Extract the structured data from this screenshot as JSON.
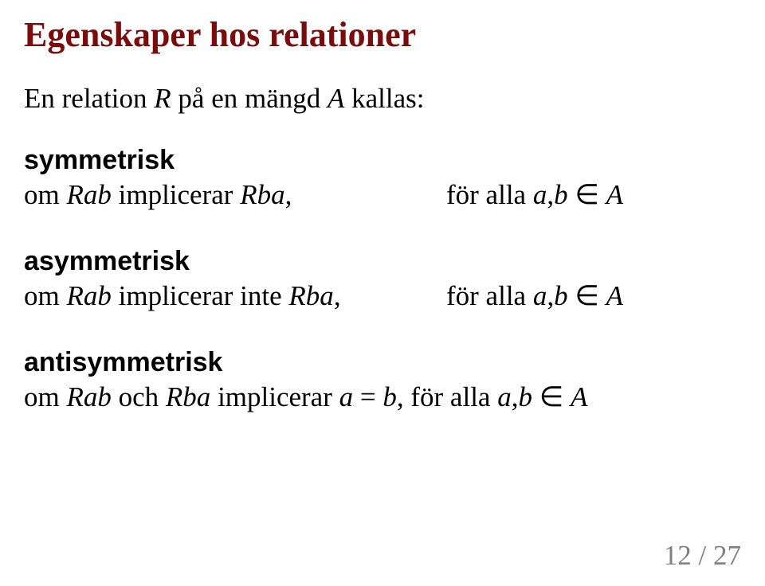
{
  "title": {
    "text": "Egenskaper hos relationer",
    "color": "#7a0c0c"
  },
  "intro": {
    "prefix": "En relation ",
    "R": "R",
    "mid": " på en mängd ",
    "A": "A",
    "suffix": " kallas:"
  },
  "symmetric": {
    "label": "symmetrisk",
    "left_prefix": "om ",
    "Rab": "Rab",
    "left_mid": " implicerar ",
    "Rba": "Rba",
    "comma": ",",
    "right_prefix": "för alla ",
    "a": "a",
    "sep": ",",
    "b": "b",
    "in": " ∈ ",
    "A": "A"
  },
  "asymmetric": {
    "label": "asymmetrisk",
    "left_prefix": "om ",
    "Rab": "Rab",
    "left_mid": " implicerar inte ",
    "Rba": "Rba",
    "comma": ",",
    "right_prefix": "för alla ",
    "a": "a",
    "sep": ",",
    "b": "b",
    "in": " ∈ ",
    "A": "A"
  },
  "antisymmetric": {
    "label": "antisymmetrisk",
    "prefix": "om ",
    "Rab": "Rab",
    "and": " och ",
    "Rba": "Rba",
    "mid": " implicerar ",
    "a1": "a",
    "eq": " = ",
    "b1": "b",
    "comma": ", ",
    "for": "för alla ",
    "a2": "a",
    "sep": ",",
    "b2": "b",
    "in": " ∈ ",
    "A": "A"
  },
  "page": {
    "current": "12",
    "sep": " / ",
    "total": "27"
  }
}
